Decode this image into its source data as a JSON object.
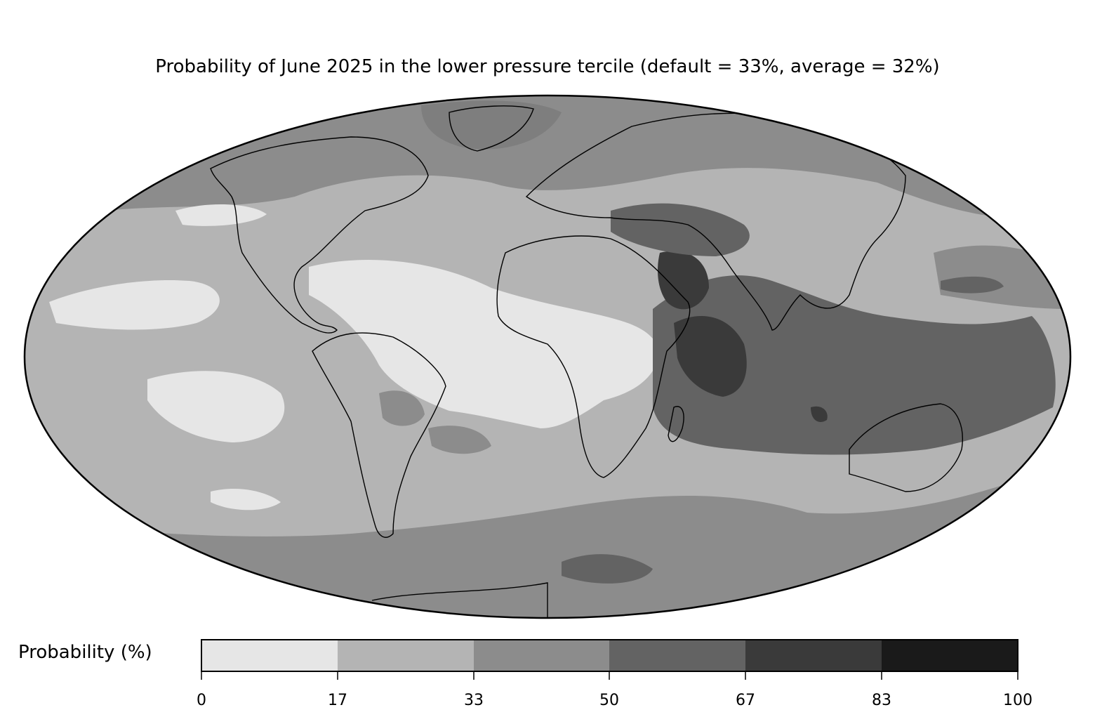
{
  "title": "Probability of June 2025 in the lower pressure tercile (default = 33%, average = 32%)",
  "map": {
    "projection": "Mollweide",
    "coastlines": true,
    "country_borders": true,
    "fill_colors": [
      "#e6e6e6",
      "#b4b4b4",
      "#8c8c8c",
      "#636363",
      "#3a3a3a",
      "#1a1a1a"
    ]
  },
  "colorbar": {
    "label": "Probability (%)",
    "levels": [
      0,
      17,
      33,
      50,
      67,
      83,
      100
    ],
    "tick_labels": [
      "0",
      "17",
      "33",
      "50",
      "67",
      "83",
      "100"
    ],
    "colors": [
      "#e6e6e6",
      "#b4b4b4",
      "#8c8c8c",
      "#636363",
      "#3a3a3a",
      "#1a1a1a"
    ]
  }
}
